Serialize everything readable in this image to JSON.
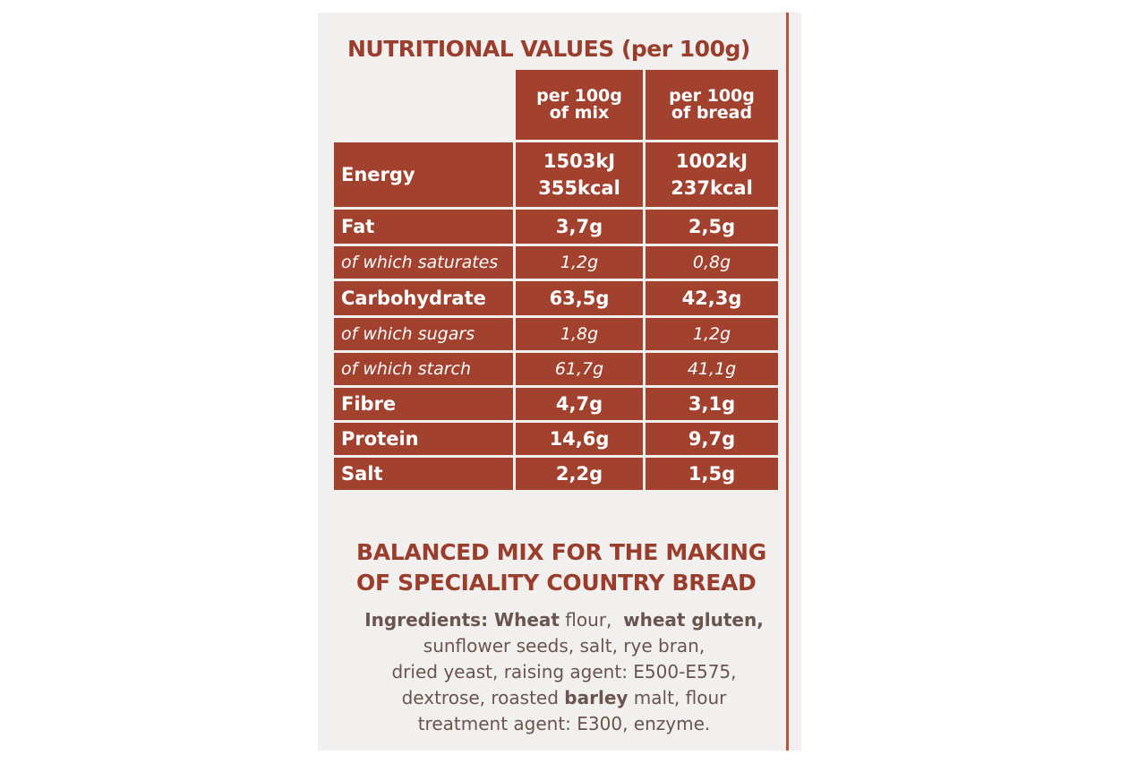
{
  "header": {
    "title": "NUTRITIONAL VALUES (per 100g)"
  },
  "table": {
    "columns": [
      [
        "per 100g",
        "of mix"
      ],
      [
        "per 100g",
        "of bread"
      ]
    ],
    "rows": [
      [
        "Energy",
        [
          "1503kJ",
          "355kcal"
        ],
        [
          "1002kJ",
          "237kcal"
        ]
      ],
      [
        "Fat",
        "3,7g",
        "2,5g"
      ],
      [
        "of which saturates",
        "1,2g",
        "0,8g"
      ],
      [
        "Carbohydrate",
        "63,5g",
        "42,3g"
      ],
      [
        "of which sugars",
        "1,8g",
        "1,2g"
      ],
      [
        "of which starch",
        "61,7g",
        "41,1g"
      ],
      [
        "Fibre",
        "4,7g",
        "3,1g"
      ],
      [
        "Protein",
        "14,6g",
        "9,7g"
      ],
      [
        "Salt",
        "2,2g",
        "1,5g"
      ]
    ]
  },
  "product": {
    "description": [
      "BALANCED MIX FOR THE MAKING",
      "OF SPECIALITY COUNTRY BREAD"
    ],
    "ingredients": [
      [
        "Ingredients: Wheat",
        " flour,  ",
        "wheat gluten,"
      ],
      [
        "sunflower seeds, salt, rye bran,"
      ],
      [
        "dried yeast, raising agent: E500-E575,"
      ],
      [
        "dextrose, roasted ",
        "barley",
        " malt, flour"
      ],
      [
        "treatment agent: E300, enzyme."
      ]
    ]
  }
}
